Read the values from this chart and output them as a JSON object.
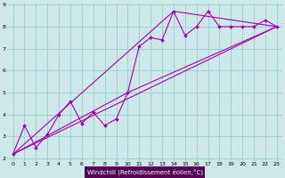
{
  "background_color": "#cce8e8",
  "line_color": "#aa00aa",
  "grid_color": "#99cccc",
  "xlabel": "Windchill (Refroidissement éolien,°C)",
  "xlabel_bg": "#550055",
  "xlabel_fg": "#ffffff",
  "xlim": [
    0,
    23
  ],
  "ylim": [
    2,
    9
  ],
  "xticks": [
    0,
    1,
    2,
    3,
    4,
    5,
    6,
    7,
    8,
    9,
    10,
    11,
    12,
    13,
    14,
    15,
    16,
    17,
    18,
    19,
    20,
    21,
    22,
    23
  ],
  "yticks": [
    2,
    3,
    4,
    5,
    6,
    7,
    8,
    9
  ],
  "line1_x": [
    0,
    1,
    2,
    3,
    4,
    5,
    6,
    7,
    8,
    9,
    10,
    11,
    12,
    13,
    14,
    15,
    16,
    17,
    18,
    19,
    20,
    21,
    22,
    23
  ],
  "line1_y": [
    2.2,
    3.5,
    2.5,
    3.1,
    4.0,
    4.6,
    3.6,
    4.1,
    3.5,
    3.8,
    5.0,
    7.1,
    7.5,
    7.4,
    8.7,
    7.6,
    8.0,
    8.7,
    8.0,
    8.0,
    8.0,
    8.0,
    8.3,
    8.0
  ],
  "line2_x": [
    0,
    23
  ],
  "line2_y": [
    2.2,
    8.0
  ],
  "line3_x": [
    0,
    14,
    23
  ],
  "line3_y": [
    2.2,
    8.7,
    8.0
  ],
  "line4_x": [
    0,
    10,
    23
  ],
  "line4_y": [
    2.2,
    5.0,
    8.0
  ]
}
